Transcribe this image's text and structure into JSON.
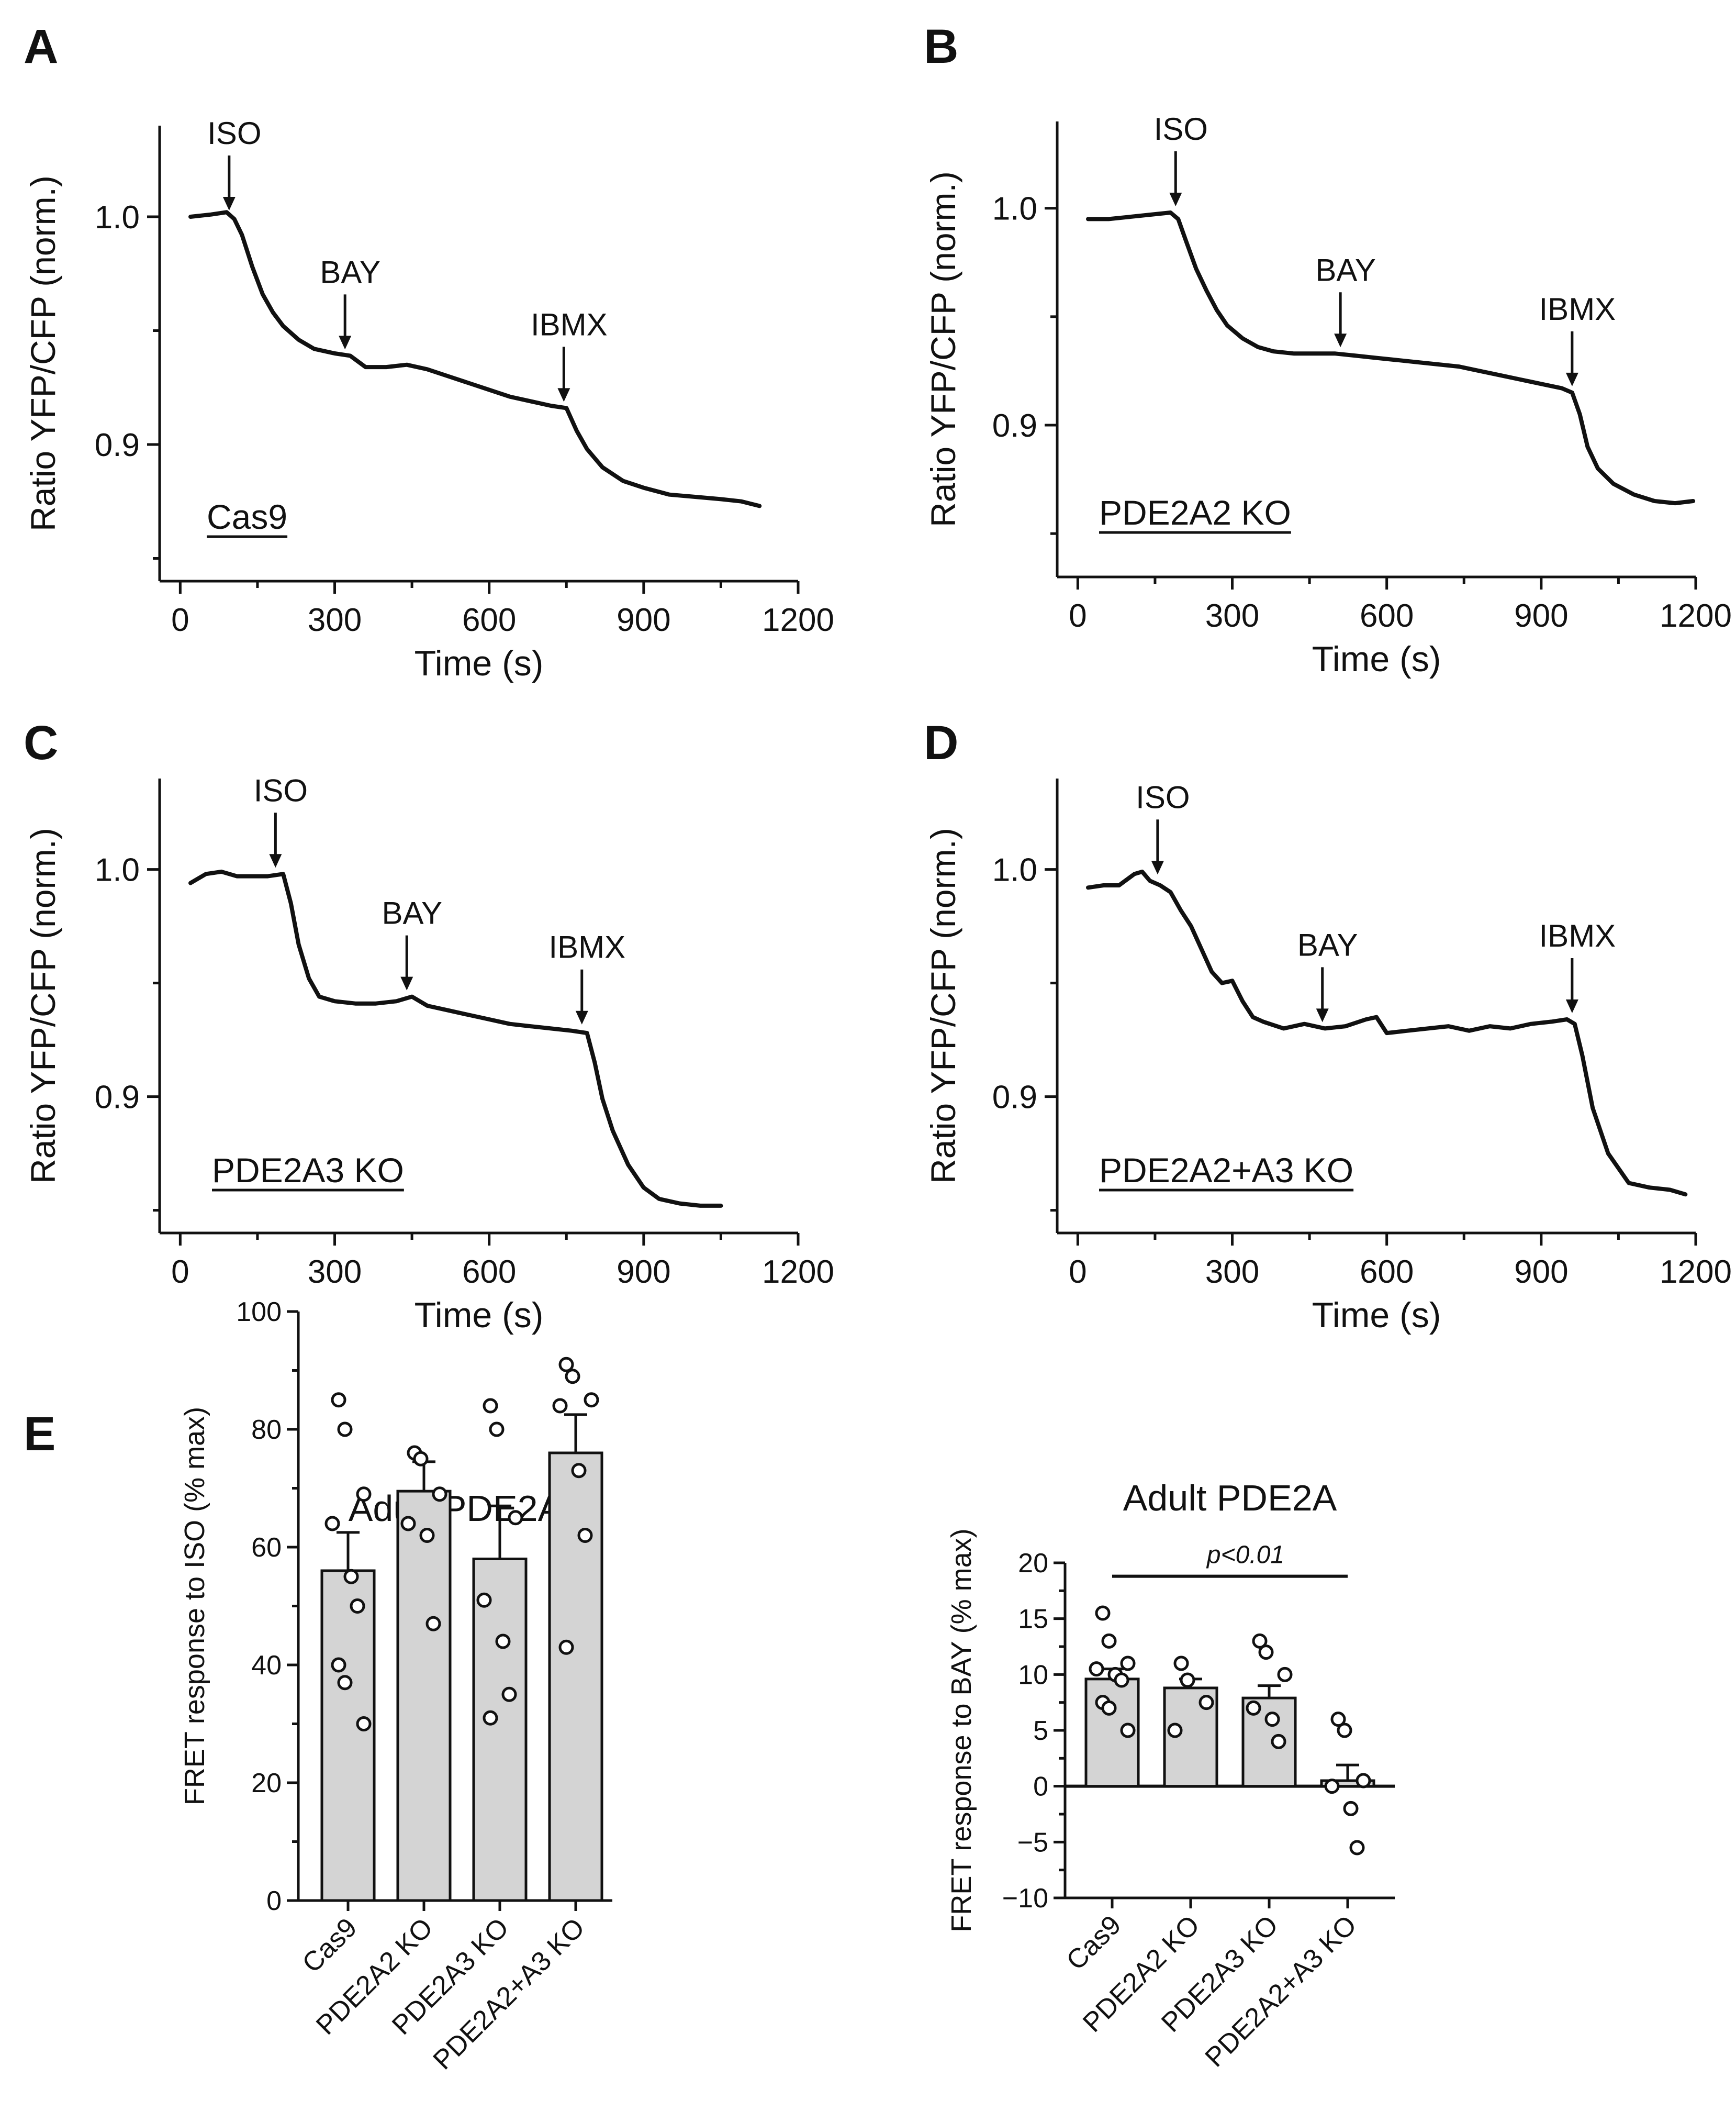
{
  "panels": {
    "A": "A",
    "B": "B",
    "C": "C",
    "D": "D",
    "E": "E"
  },
  "chart_data": [
    {
      "id": "A",
      "type": "line",
      "xlabel": "Time (s)",
      "ylabel": "Ratio YFP/CFP (norm.)",
      "xlim": [
        -40,
        1200
      ],
      "ylim": [
        0.84,
        1.04
      ],
      "xticks": [
        "0",
        "300",
        "600",
        "900",
        "1200"
      ],
      "yticks": [
        "0.9",
        "1.0"
      ],
      "condition": "Cas9",
      "events": [
        {
          "label": "ISO",
          "time": 95,
          "value": 1.0
        },
        {
          "label": "BAY",
          "time": 320,
          "value": 0.939
        },
        {
          "label": "IBMX",
          "time": 745,
          "value": 0.916
        }
      ],
      "trace": {
        "x": [
          20,
          60,
          90,
          105,
          120,
          140,
          160,
          180,
          200,
          230,
          260,
          300,
          330,
          360,
          400,
          440,
          480,
          520,
          560,
          600,
          640,
          680,
          720,
          750,
          770,
          790,
          820,
          860,
          900,
          950,
          1000,
          1050,
          1090,
          1125
        ],
        "y": [
          1.0,
          1.001,
          1.002,
          0.999,
          0.992,
          0.978,
          0.966,
          0.958,
          0.952,
          0.946,
          0.942,
          0.94,
          0.939,
          0.934,
          0.934,
          0.935,
          0.933,
          0.93,
          0.927,
          0.924,
          0.921,
          0.919,
          0.917,
          0.916,
          0.906,
          0.898,
          0.89,
          0.884,
          0.881,
          0.878,
          0.877,
          0.876,
          0.875,
          0.873
        ]
      }
    },
    {
      "id": "B",
      "type": "line",
      "xlabel": "Time (s)",
      "ylabel": "Ratio YFP/CFP (norm.)",
      "xlim": [
        -40,
        1200
      ],
      "ylim": [
        0.83,
        1.04
      ],
      "xticks": [
        "0",
        "300",
        "600",
        "900",
        "1200"
      ],
      "yticks": [
        "0.9",
        "1.0"
      ],
      "condition": "PDE2A2 KO",
      "events": [
        {
          "label": "ISO",
          "time": 190,
          "value": 0.998
        },
        {
          "label": "BAY",
          "time": 510,
          "value": 0.933
        },
        {
          "label": "IBMX",
          "time": 960,
          "value": 0.915
        }
      ],
      "trace": {
        "x": [
          20,
          60,
          100,
          140,
          180,
          195,
          210,
          230,
          250,
          270,
          290,
          320,
          350,
          380,
          420,
          460,
          500,
          540,
          580,
          620,
          660,
          700,
          740,
          780,
          820,
          860,
          900,
          940,
          960,
          975,
          990,
          1010,
          1040,
          1080,
          1120,
          1160,
          1195
        ],
        "y": [
          0.995,
          0.995,
          0.996,
          0.997,
          0.998,
          0.995,
          0.985,
          0.972,
          0.962,
          0.953,
          0.946,
          0.94,
          0.936,
          0.934,
          0.933,
          0.933,
          0.933,
          0.932,
          0.931,
          0.93,
          0.929,
          0.928,
          0.927,
          0.925,
          0.923,
          0.921,
          0.919,
          0.917,
          0.915,
          0.905,
          0.89,
          0.88,
          0.873,
          0.868,
          0.865,
          0.864,
          0.865
        ]
      }
    },
    {
      "id": "C",
      "type": "line",
      "xlabel": "Time (s)",
      "ylabel": "Ratio YFP/CFP (norm.)",
      "xlim": [
        -40,
        1200
      ],
      "ylim": [
        0.84,
        1.04
      ],
      "xticks": [
        "0",
        "300",
        "600",
        "900",
        "1200"
      ],
      "yticks": [
        "0.9",
        "1.0"
      ],
      "condition": "PDE2A3 KO",
      "events": [
        {
          "label": "ISO",
          "time": 185,
          "value": 0.998
        },
        {
          "label": "BAY",
          "time": 440,
          "value": 0.944
        },
        {
          "label": "IBMX",
          "time": 780,
          "value": 0.929
        }
      ],
      "trace": {
        "x": [
          20,
          50,
          80,
          110,
          140,
          170,
          200,
          215,
          230,
          250,
          270,
          300,
          340,
          380,
          420,
          450,
          480,
          520,
          560,
          600,
          640,
          680,
          720,
          760,
          790,
          805,
          820,
          840,
          870,
          900,
          930,
          970,
          1010,
          1050
        ],
        "y": [
          0.994,
          0.998,
          0.999,
          0.997,
          0.997,
          0.997,
          0.998,
          0.985,
          0.967,
          0.952,
          0.944,
          0.942,
          0.941,
          0.941,
          0.942,
          0.944,
          0.94,
          0.938,
          0.936,
          0.934,
          0.932,
          0.931,
          0.93,
          0.929,
          0.928,
          0.915,
          0.899,
          0.885,
          0.87,
          0.86,
          0.855,
          0.853,
          0.852,
          0.852
        ]
      }
    },
    {
      "id": "D",
      "type": "line",
      "xlabel": "Time (s)",
      "ylabel": "Ratio YFP/CFP (norm.)",
      "xlim": [
        -40,
        1200
      ],
      "ylim": [
        0.84,
        1.04
      ],
      "xticks": [
        "0",
        "300",
        "600",
        "900",
        "1200"
      ],
      "yticks": [
        "0.9",
        "1.0"
      ],
      "condition": "PDE2A2+A3 KO",
      "events": [
        {
          "label": "ISO",
          "time": 155,
          "value": 0.995
        },
        {
          "label": "BAY",
          "time": 475,
          "value": 0.93
        },
        {
          "label": "IBMX",
          "time": 960,
          "value": 0.934
        }
      ],
      "trace": {
        "x": [
          20,
          50,
          80,
          110,
          125,
          140,
          160,
          180,
          200,
          220,
          240,
          260,
          280,
          300,
          320,
          340,
          360,
          400,
          440,
          480,
          520,
          560,
          580,
          600,
          640,
          680,
          720,
          760,
          800,
          840,
          880,
          920,
          950,
          965,
          980,
          1000,
          1030,
          1070,
          1110,
          1150,
          1180
        ],
        "y": [
          0.992,
          0.993,
          0.993,
          0.998,
          0.999,
          0.995,
          0.993,
          0.99,
          0.982,
          0.975,
          0.965,
          0.955,
          0.95,
          0.951,
          0.942,
          0.935,
          0.933,
          0.93,
          0.932,
          0.93,
          0.931,
          0.934,
          0.935,
          0.928,
          0.929,
          0.93,
          0.931,
          0.929,
          0.931,
          0.93,
          0.932,
          0.933,
          0.934,
          0.932,
          0.918,
          0.895,
          0.875,
          0.862,
          0.86,
          0.859,
          0.857
        ]
      }
    },
    {
      "id": "E-left",
      "type": "bar",
      "title": "Adult PDE2A",
      "ylabel": "FRET response to ISO (% max)",
      "ylim": [
        0,
        100
      ],
      "yticks": [
        "0",
        "20",
        "40",
        "60",
        "80",
        "100"
      ],
      "categories": [
        "Cas9",
        "PDE2A2 KO",
        "PDE2A3 KO",
        "PDE2A2+A3 KO"
      ],
      "values": [
        56,
        69.5,
        58,
        76
      ],
      "sem": [
        6.5,
        5,
        9,
        6.5
      ],
      "points": [
        [
          85,
          80,
          69,
          64,
          55,
          50,
          40,
          37,
          30
        ],
        [
          76,
          75,
          69,
          64,
          62,
          47
        ],
        [
          84,
          80,
          65,
          51,
          44,
          35,
          31
        ],
        [
          91,
          89,
          85,
          84,
          73,
          62,
          43
        ]
      ]
    },
    {
      "id": "E-right",
      "type": "bar",
      "title": "Adult PDE2A",
      "ylabel": "FRET response to BAY (% max)",
      "ylim": [
        -10,
        20
      ],
      "yticks": [
        "−5",
        "0",
        "5",
        "10",
        "15",
        "20"
      ],
      "yticks_extra": "−10",
      "categories": [
        "Cas9",
        "PDE2A2 KO",
        "PDE2A3 KO",
        "PDE2A2+A3 KO"
      ],
      "values": [
        9.6,
        8.8,
        7.9,
        0.5
      ],
      "sem": [
        0.9,
        0.8,
        1.1,
        1.4
      ],
      "points": [
        [
          15.5,
          13,
          11,
          10.5,
          10,
          9.5,
          7.5,
          7,
          5
        ],
        [
          11,
          9.5,
          7.5,
          5
        ],
        [
          13,
          12,
          10,
          7,
          6,
          4
        ],
        [
          6,
          5,
          0.5,
          0,
          -2,
          -5.5
        ]
      ],
      "significance": {
        "label": "p<0.01",
        "from": "Cas9",
        "to": "PDE2A2+A3 KO"
      }
    }
  ]
}
